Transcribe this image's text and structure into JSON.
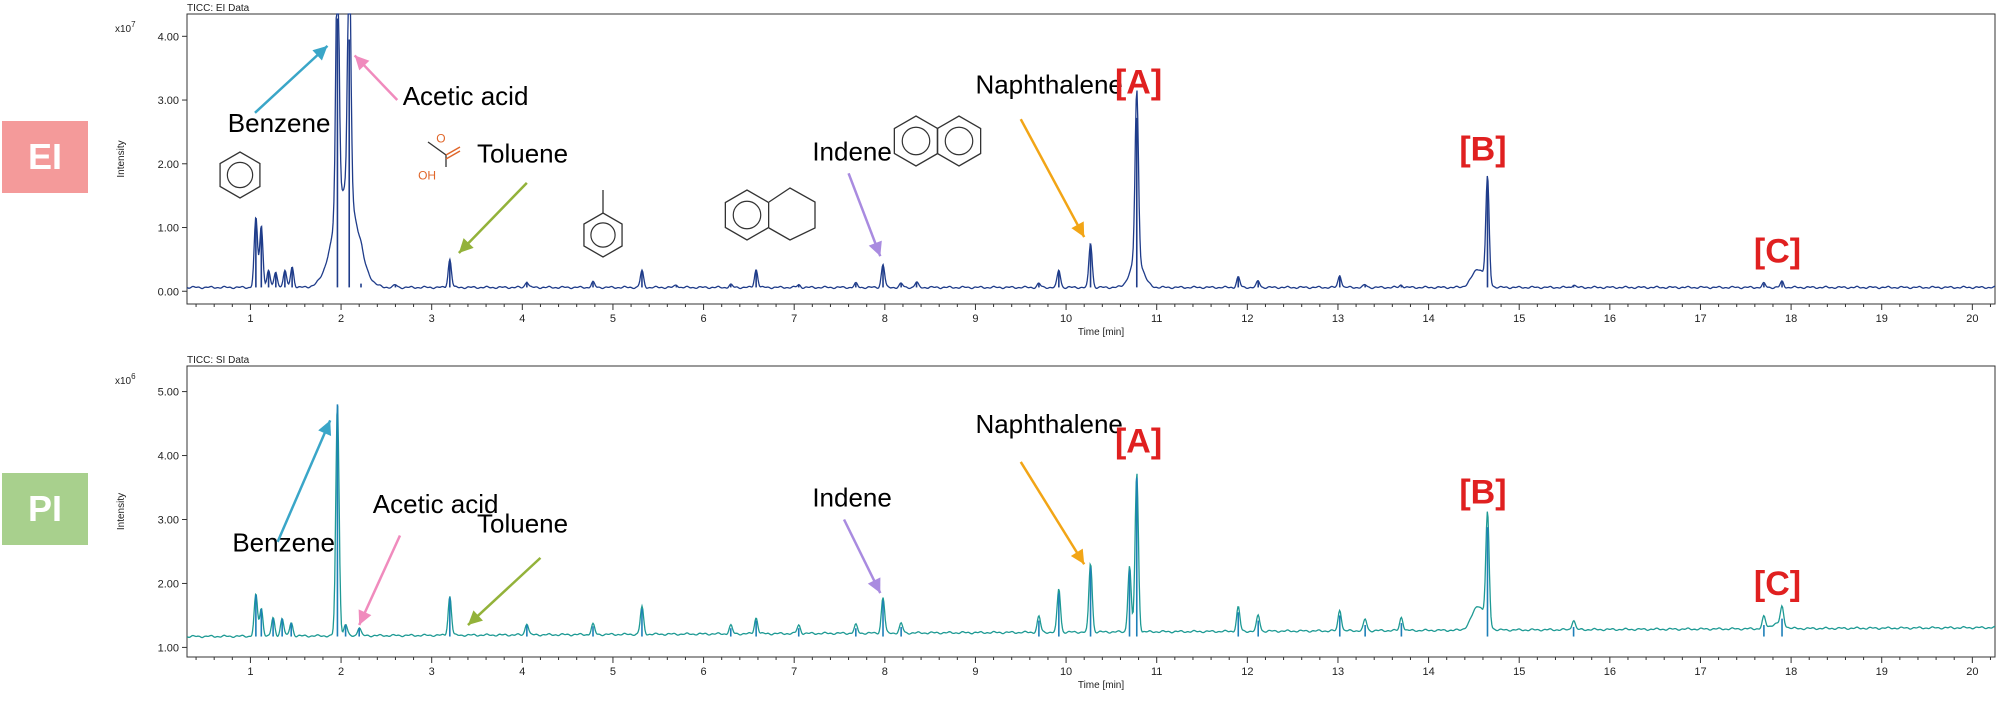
{
  "badges": {
    "ei": "EI",
    "pi": "PI"
  },
  "colors": {
    "ei_trace": "#1f3c8a",
    "pi_trace": "#1e9a94",
    "pi_overlay": "#1d7fb8",
    "benzene_arrow": "#3aa6c8",
    "acetic_arrow": "#f08bbd",
    "toluene_arrow": "#93b23a",
    "indene_arrow": "#a98be0",
    "naphthalene_arrow": "#f2a516",
    "marker_text": "#e02020",
    "acetic_structure": "#e0662a"
  },
  "chart_data": [
    {
      "type": "line",
      "title": "TICC: EI Data",
      "xlabel": "Time [min]",
      "ylabel": "Intensity",
      "y_multiplier": "x10",
      "y_exponent": "7",
      "xlim": [
        0.3,
        20.25
      ],
      "ylim": [
        -0.2,
        4.35
      ],
      "x_ticks": [
        1,
        2,
        3,
        4,
        5,
        6,
        7,
        8,
        9,
        10,
        11,
        12,
        13,
        14,
        15,
        16,
        17,
        18,
        19,
        20
      ],
      "y_ticks": [
        0,
        1,
        2,
        3,
        4
      ],
      "y_tick_labels": [
        "0.00",
        "1.00",
        "2.00",
        "3.00",
        "4.00"
      ],
      "baseline": 0.06,
      "peaks": [
        {
          "x": 1.06,
          "y": 1.15
        },
        {
          "x": 1.12,
          "y": 1.02
        },
        {
          "x": 1.2,
          "y": 0.32
        },
        {
          "x": 1.28,
          "y": 0.3
        },
        {
          "x": 1.38,
          "y": 0.32
        },
        {
          "x": 1.46,
          "y": 0.38
        },
        {
          "x": 1.96,
          "y": 4.28
        },
        {
          "x": 2.09,
          "y": 3.95
        },
        {
          "x": 2.22,
          "y": 0.12
        },
        {
          "x": 2.6,
          "y": 0.1
        },
        {
          "x": 3.2,
          "y": 0.5
        },
        {
          "x": 4.05,
          "y": 0.15
        },
        {
          "x": 4.78,
          "y": 0.14
        },
        {
          "x": 5.32,
          "y": 0.32
        },
        {
          "x": 5.7,
          "y": 0.1
        },
        {
          "x": 6.3,
          "y": 0.1
        },
        {
          "x": 6.58,
          "y": 0.34
        },
        {
          "x": 7.05,
          "y": 0.1
        },
        {
          "x": 7.68,
          "y": 0.12
        },
        {
          "x": 7.98,
          "y": 0.42
        },
        {
          "x": 8.18,
          "y": 0.12
        },
        {
          "x": 8.35,
          "y": 0.14
        },
        {
          "x": 9.7,
          "y": 0.12
        },
        {
          "x": 9.92,
          "y": 0.33
        },
        {
          "x": 10.27,
          "y": 0.75
        },
        {
          "x": 10.78,
          "y": 2.72
        },
        {
          "x": 11.9,
          "y": 0.22
        },
        {
          "x": 12.12,
          "y": 0.16
        },
        {
          "x": 13.02,
          "y": 0.25
        },
        {
          "x": 13.3,
          "y": 0.1
        },
        {
          "x": 13.7,
          "y": 0.1
        },
        {
          "x": 14.65,
          "y": 1.7
        },
        {
          "x": 15.6,
          "y": 0.1
        },
        {
          "x": 17.7,
          "y": 0.12
        },
        {
          "x": 17.9,
          "y": 0.15
        }
      ],
      "broad_features": [
        {
          "x": 2.05,
          "y": 1.6
        },
        {
          "x": 10.78,
          "y": 0.5
        },
        {
          "x": 14.55,
          "y": 0.35
        },
        {
          "x": 17.8,
          "y": 0.06
        }
      ],
      "annotations": [
        {
          "text": "Benzene",
          "x": 0.75,
          "y": 2.5,
          "color": "#000000"
        },
        {
          "text": "Acetic acid",
          "x": 2.68,
          "y": 2.92,
          "color": "#000000"
        },
        {
          "text": "Toluene",
          "x": 3.5,
          "y": 2.02,
          "color": "#000000"
        },
        {
          "text": "Indene",
          "x": 7.2,
          "y": 2.05,
          "color": "#000000"
        },
        {
          "text": "Naphthalene",
          "x": 9.0,
          "y": 3.1,
          "color": "#000000"
        },
        {
          "text": "[A]",
          "x": 10.8,
          "y": 3.1,
          "color": "#e02020"
        },
        {
          "text": "[B]",
          "x": 14.6,
          "y": 2.05,
          "color": "#e02020"
        },
        {
          "text": "[C]",
          "x": 17.85,
          "y": 0.45,
          "color": "#e02020"
        }
      ],
      "structure_labels": [
        {
          "text": "O",
          "x": 3.05,
          "y": 2.33
        },
        {
          "text": "OH",
          "x": 2.85,
          "y": 1.75
        }
      ]
    },
    {
      "type": "line",
      "title": "TICC: SI Data",
      "xlabel": "Time [min]",
      "ylabel": "Intensity",
      "y_multiplier": "x10",
      "y_exponent": "6",
      "xlim": [
        0.3,
        20.25
      ],
      "ylim": [
        0.85,
        5.4
      ],
      "x_ticks": [
        1,
        2,
        3,
        4,
        5,
        6,
        7,
        8,
        9,
        10,
        11,
        12,
        13,
        14,
        15,
        16,
        17,
        18,
        19,
        20
      ],
      "y_ticks": [
        1,
        2,
        3,
        4,
        5
      ],
      "y_tick_labels": [
        "1.00",
        "2.00",
        "3.00",
        "4.00",
        "5.00"
      ],
      "baseline": 1.17,
      "peaks": [
        {
          "x": 1.06,
          "y": 1.82
        },
        {
          "x": 1.12,
          "y": 1.6
        },
        {
          "x": 1.25,
          "y": 1.45
        },
        {
          "x": 1.35,
          "y": 1.45
        },
        {
          "x": 1.45,
          "y": 1.38
        },
        {
          "x": 1.96,
          "y": 4.8
        },
        {
          "x": 2.05,
          "y": 1.35
        },
        {
          "x": 2.2,
          "y": 1.3
        },
        {
          "x": 3.2,
          "y": 1.78
        },
        {
          "x": 4.05,
          "y": 1.35
        },
        {
          "x": 4.78,
          "y": 1.33
        },
        {
          "x": 5.32,
          "y": 1.6
        },
        {
          "x": 6.3,
          "y": 1.3
        },
        {
          "x": 6.58,
          "y": 1.42
        },
        {
          "x": 7.05,
          "y": 1.3
        },
        {
          "x": 7.68,
          "y": 1.3
        },
        {
          "x": 7.98,
          "y": 1.73
        },
        {
          "x": 8.18,
          "y": 1.32
        },
        {
          "x": 9.7,
          "y": 1.42
        },
        {
          "x": 9.92,
          "y": 1.85
        },
        {
          "x": 10.27,
          "y": 2.25
        },
        {
          "x": 10.7,
          "y": 2.2
        },
        {
          "x": 10.78,
          "y": 3.65
        },
        {
          "x": 11.9,
          "y": 1.55
        },
        {
          "x": 12.12,
          "y": 1.42
        },
        {
          "x": 13.02,
          "y": 1.5
        },
        {
          "x": 13.3,
          "y": 1.35
        },
        {
          "x": 13.7,
          "y": 1.38
        },
        {
          "x": 14.65,
          "y": 2.88
        },
        {
          "x": 15.6,
          "y": 1.32
        },
        {
          "x": 17.7,
          "y": 1.35
        },
        {
          "x": 17.9,
          "y": 1.45
        }
      ],
      "broad_features": [
        {
          "x": 14.55,
          "y": 1.55
        },
        {
          "x": 17.85,
          "y": 1.25
        }
      ],
      "annotations": [
        {
          "text": "Benzene",
          "x": 0.8,
          "y": 2.5,
          "color": "#000000"
        },
        {
          "text": "Acetic acid",
          "x": 2.35,
          "y": 3.1,
          "color": "#000000"
        },
        {
          "text": "Toluene",
          "x": 3.5,
          "y": 2.8,
          "color": "#000000"
        },
        {
          "text": "Indene",
          "x": 7.2,
          "y": 3.2,
          "color": "#000000"
        },
        {
          "text": "Naphthalene",
          "x": 9.0,
          "y": 4.35,
          "color": "#000000"
        },
        {
          "text": "[A]",
          "x": 10.8,
          "y": 4.05,
          "color": "#e02020"
        },
        {
          "text": "[B]",
          "x": 14.6,
          "y": 3.25,
          "color": "#e02020"
        },
        {
          "text": "[C]",
          "x": 17.85,
          "y": 1.82,
          "color": "#e02020"
        }
      ]
    }
  ]
}
